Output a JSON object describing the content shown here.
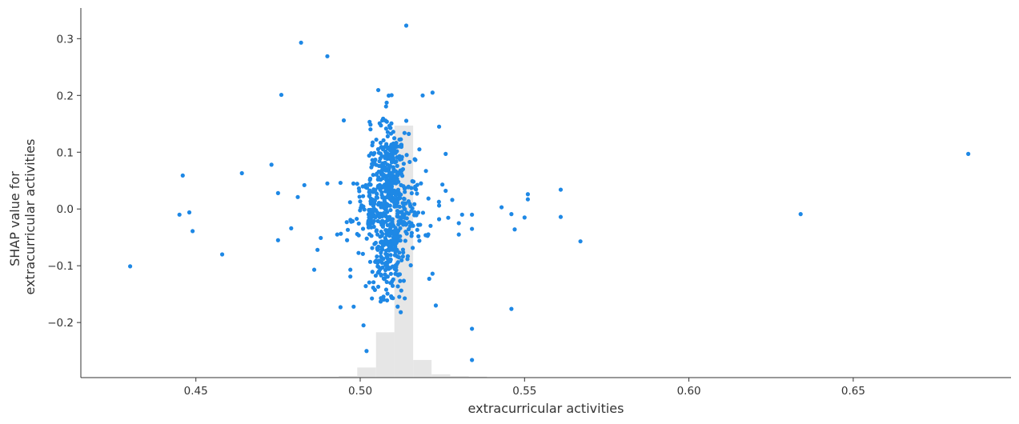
{
  "chart_data": {
    "type": "scatter",
    "title": "",
    "xlabel": "extracurricular activities",
    "ylabel_lines": [
      "SHAP value for",
      "extracurricular activities"
    ],
    "xlim": [
      0.415,
      0.698
    ],
    "ylim": [
      -0.297,
      0.354
    ],
    "xticks": [
      0.45,
      0.5,
      0.55,
      0.6,
      0.65
    ],
    "xtick_labels": [
      "0.45",
      "0.50",
      "0.55",
      "0.60",
      "0.65"
    ],
    "yticks": [
      -0.2,
      -0.1,
      0.0,
      0.1,
      0.2,
      0.3
    ],
    "ytick_labels": [
      "−0.2",
      "−0.1",
      "0.0",
      "0.1",
      "0.2",
      "0.3"
    ],
    "grid": false,
    "colors": {
      "points": "#1e88e5",
      "histogram": "#e6e6e6",
      "axis": "#333333"
    },
    "histogram": {
      "bin_edges": [
        0.4201,
        0.4257,
        0.4314,
        0.437,
        0.4427,
        0.4483,
        0.454,
        0.4596,
        0.4653,
        0.4709,
        0.4765,
        0.4822,
        0.4878,
        0.4935,
        0.4991,
        0.5048,
        0.5104,
        0.5161,
        0.5217,
        0.5274,
        0.533,
        0.5386,
        0.5443,
        0.5499,
        0.5556,
        0.5612,
        0.5669,
        0.5725,
        0.5782,
        0.5838,
        0.5895,
        0.5951,
        0.6007,
        0.6064,
        0.612,
        0.6177,
        0.6233,
        0.629,
        0.6346,
        0.6403,
        0.6459,
        0.6515,
        0.6572,
        0.6628,
        0.6685,
        0.6741,
        0.6798,
        0.6854
      ],
      "relative_heights": [
        0.0,
        0.0,
        0.0,
        0.0,
        0.0,
        0.0,
        0.0,
        0.0,
        0.0,
        0.0,
        0.0,
        0.0,
        0.003,
        0.006,
        0.04,
        0.18,
        1.0,
        0.07,
        0.013,
        0.006,
        0.004,
        0.0,
        0.0,
        0.0,
        0.0,
        0.0,
        0.0,
        0.0,
        0.0,
        0.0,
        0.0,
        0.0,
        0.0,
        0.0,
        0.0,
        0.0,
        0.0,
        0.0,
        0.0,
        0.0,
        0.0,
        0.0,
        0.0,
        0.0,
        0.0,
        0.0,
        0.0
      ]
    },
    "outlier_points": [
      [
        0.43,
        -0.101
      ],
      [
        0.445,
        -0.01
      ],
      [
        0.446,
        0.059
      ],
      [
        0.448,
        -0.006
      ],
      [
        0.449,
        -0.039
      ],
      [
        0.458,
        -0.08
      ],
      [
        0.464,
        0.063
      ],
      [
        0.473,
        0.078
      ],
      [
        0.475,
        0.028
      ],
      [
        0.475,
        -0.055
      ],
      [
        0.476,
        0.201
      ],
      [
        0.479,
        -0.034
      ],
      [
        0.481,
        0.021
      ],
      [
        0.482,
        0.293
      ],
      [
        0.483,
        0.042
      ],
      [
        0.486,
        -0.107
      ],
      [
        0.487,
        -0.072
      ],
      [
        0.488,
        -0.051
      ],
      [
        0.49,
        0.045
      ],
      [
        0.49,
        0.269
      ],
      [
        0.493,
        -0.045
      ],
      [
        0.494,
        0.046
      ],
      [
        0.494,
        -0.173
      ],
      [
        0.495,
        0.156
      ],
      [
        0.496,
        -0.055
      ],
      [
        0.497,
        -0.119
      ],
      [
        0.497,
        -0.107
      ],
      [
        0.498,
        -0.172
      ],
      [
        0.501,
        -0.205
      ],
      [
        0.514,
        0.323
      ],
      [
        0.518,
        -0.056
      ],
      [
        0.518,
        0.105
      ],
      [
        0.519,
        0.2
      ],
      [
        0.52,
        0.067
      ],
      [
        0.521,
        -0.123
      ],
      [
        0.522,
        0.205
      ],
      [
        0.522,
        -0.114
      ],
      [
        0.523,
        -0.17
      ],
      [
        0.524,
        0.145
      ],
      [
        0.524,
        -0.018
      ],
      [
        0.524,
        0.006
      ],
      [
        0.525,
        0.043
      ],
      [
        0.526,
        0.097
      ],
      [
        0.526,
        0.032
      ],
      [
        0.528,
        0.016
      ],
      [
        0.53,
        -0.045
      ],
      [
        0.53,
        -0.025
      ],
      [
        0.531,
        -0.01
      ],
      [
        0.534,
        -0.266
      ],
      [
        0.534,
        -0.211
      ],
      [
        0.534,
        -0.01
      ],
      [
        0.534,
        -0.035
      ],
      [
        0.543,
        0.003
      ],
      [
        0.546,
        -0.009
      ],
      [
        0.546,
        -0.176
      ],
      [
        0.547,
        -0.036
      ],
      [
        0.55,
        -0.015
      ],
      [
        0.551,
        0.017
      ],
      [
        0.551,
        0.026
      ],
      [
        0.561,
        0.034
      ],
      [
        0.561,
        -0.014
      ],
      [
        0.567,
        -0.057
      ],
      [
        0.634,
        -0.009
      ],
      [
        0.685,
        0.097
      ]
    ],
    "core_cluster": {
      "approx_point_count": 700,
      "x_center": 0.5085,
      "x_spread": 0.006,
      "y_range": [
        -0.26,
        0.32
      ]
    }
  }
}
